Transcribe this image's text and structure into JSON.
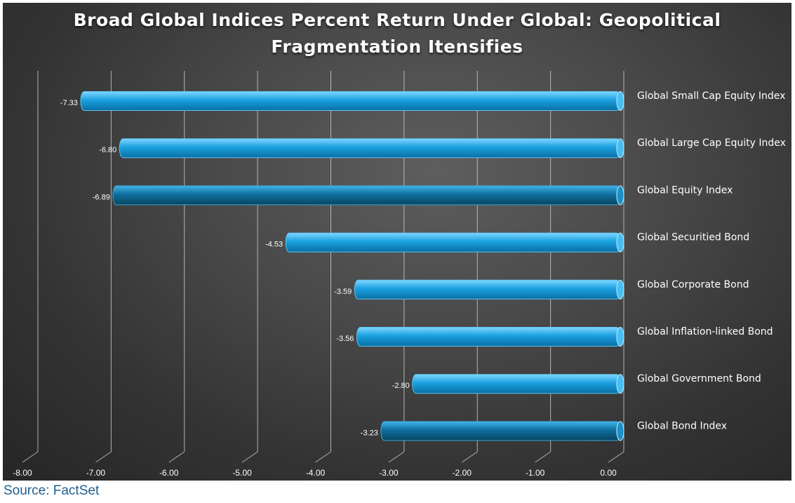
{
  "source": "Source: FactSet",
  "chart_data": {
    "type": "bar",
    "orientation": "horizontal",
    "title": "Broad Global Indices Percent Return Under Global: Geopolitical Fragmentation Itensifies",
    "title_lines": [
      "Broad Global Indices Percent Return Under Global: Geopolitical",
      "Fragmentation Itensifies"
    ],
    "categories": [
      "Global Small Cap Equity Index",
      "Global Large Cap Equity Index",
      "Global Equity Index",
      "Global Securitied Bond",
      "Global Corporate Bond",
      "Global Inflation-linked Bond",
      "Global Government Bond",
      "Global Bond Index"
    ],
    "values": [
      -7.33,
      -6.8,
      -6.89,
      -4.53,
      -3.59,
      -3.56,
      -2.8,
      -3.23
    ],
    "data_labels": [
      "-7.33",
      "-6.80",
      "-6.89",
      "-4.53",
      "-3.59",
      "-3.56",
      "-2.80",
      "-3.23"
    ],
    "highlight": [
      false,
      false,
      true,
      false,
      false,
      false,
      false,
      true
    ],
    "xlim": [
      -8,
      0
    ],
    "x_ticks": [
      "-8.00",
      "-7.00",
      "-6.00",
      "-5.00",
      "-4.00",
      "-3.00",
      "-2.00",
      "-1.00",
      "0.00"
    ],
    "grid": true,
    "legend": "none",
    "colors": {
      "bar": "#1aa0e0",
      "bar_highlight": "#0f6f9e",
      "bar_light": "#7fd6ff",
      "grid": "#c8c8c8",
      "background": "#454545",
      "source_text": "#1f5f8b"
    }
  }
}
